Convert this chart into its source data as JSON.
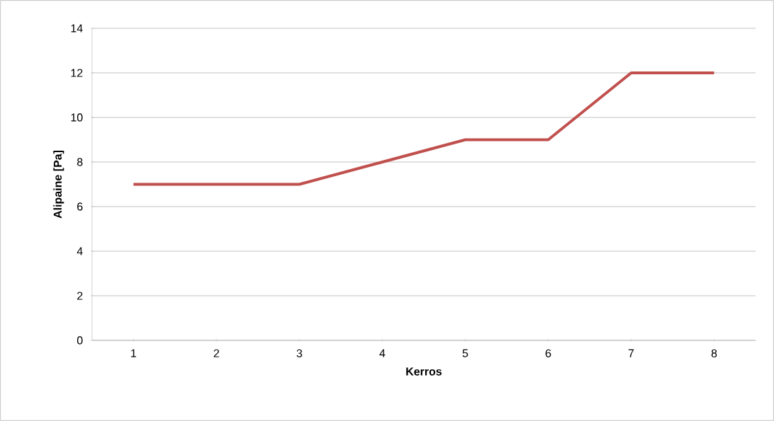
{
  "chart_data": {
    "type": "line",
    "xlabel": "Kerros",
    "ylabel": "Alipaine [Pa]",
    "categories": [
      "1",
      "2",
      "3",
      "4",
      "5",
      "6",
      "7",
      "8"
    ],
    "values": [
      7,
      7,
      7,
      8,
      9,
      9,
      12,
      12
    ],
    "color": "#c0504d",
    "ylim": [
      0,
      14
    ],
    "yticks": [
      0,
      2,
      4,
      6,
      8,
      10,
      12,
      14
    ],
    "grid": "y",
    "marker": "none",
    "line_style": "solid"
  }
}
